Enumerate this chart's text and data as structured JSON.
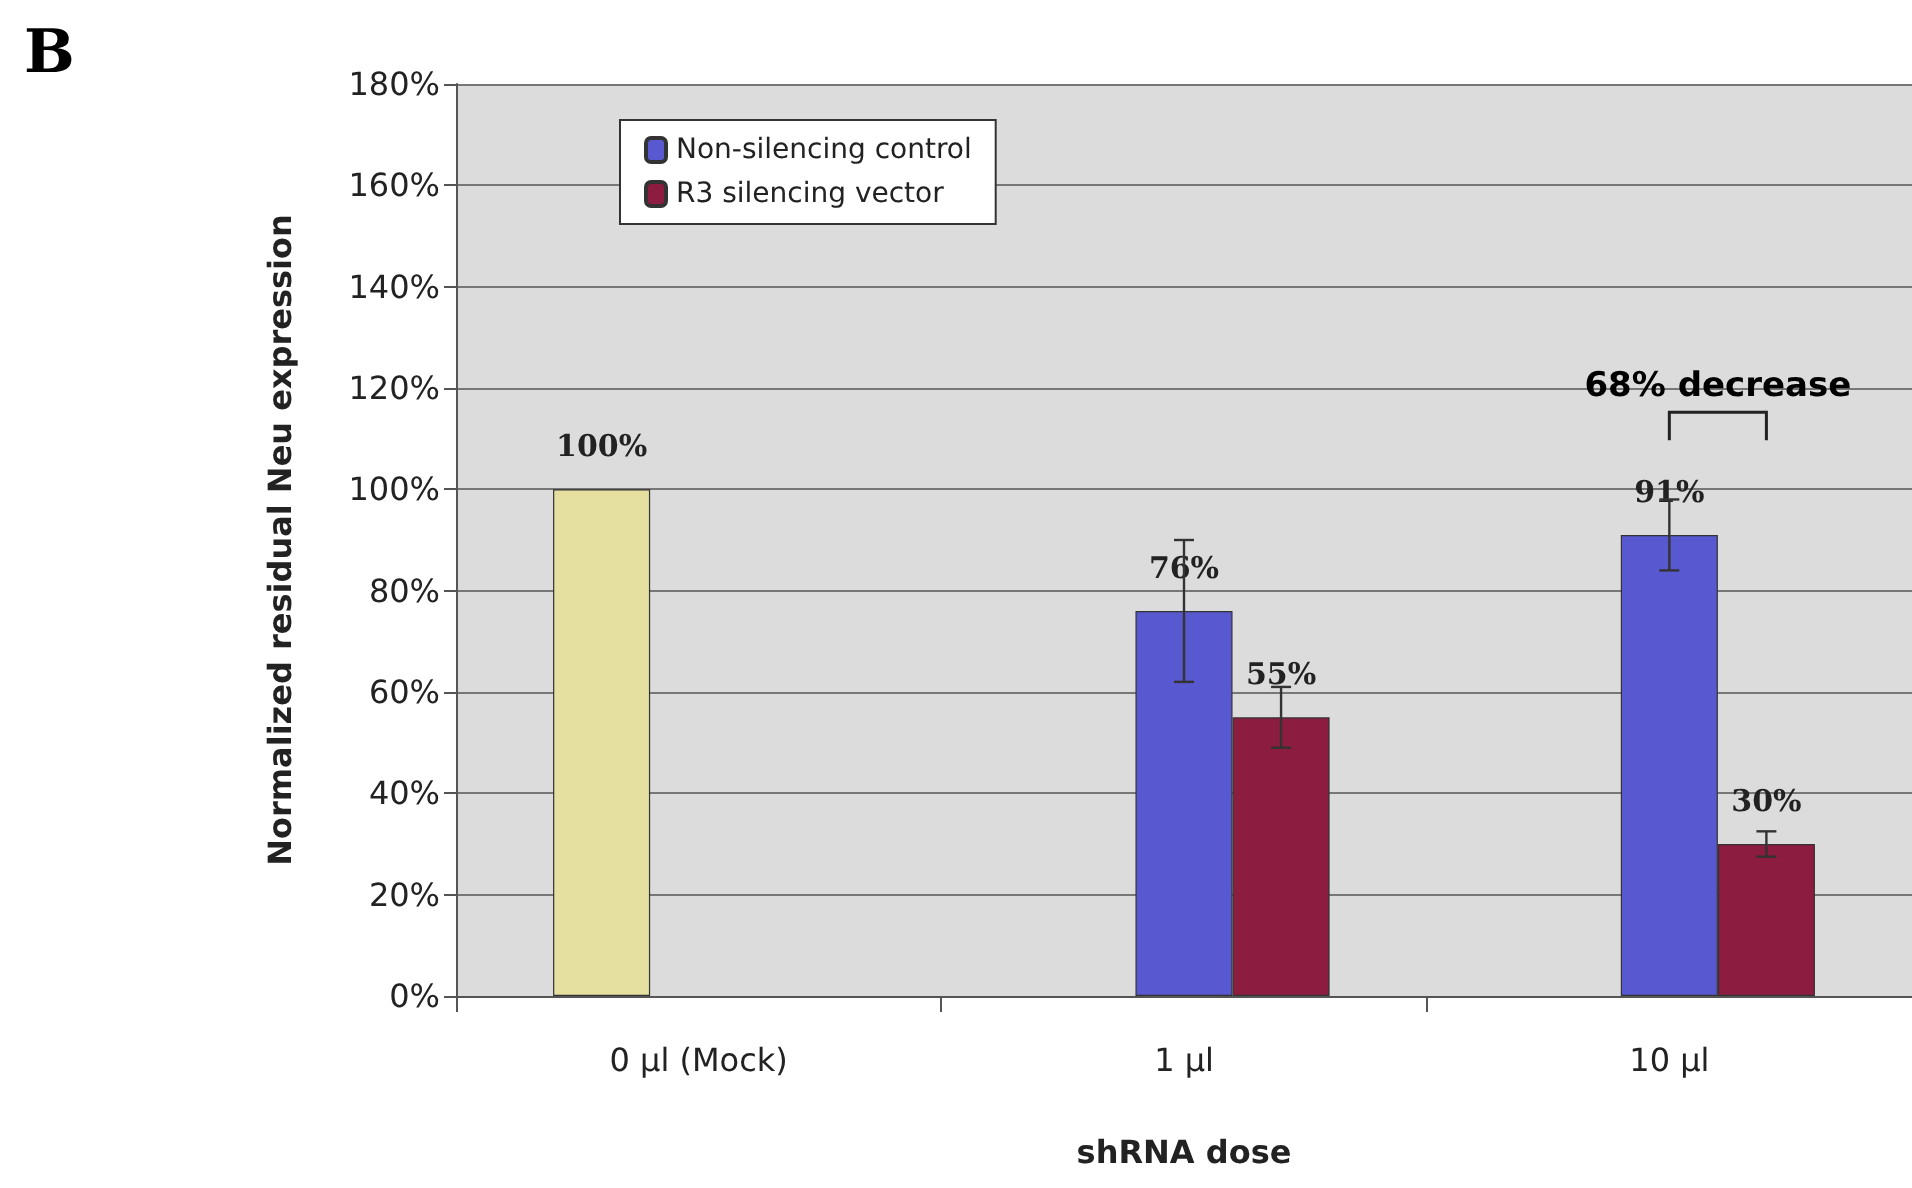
{
  "chart_data": {
    "type": "bar",
    "xlabel": "shRNA dose",
    "ylabel": "Normalized residual Neu expression",
    "categories": [
      "0 µl (Mock)",
      "1 µl",
      "10 µl"
    ],
    "series": [
      {
        "color": "#e6e0a0",
        "values": [
          100,
          null,
          null
        ],
        "errors": [
          null,
          null,
          null
        ]
      },
      {
        "name": "Non-silencing control",
        "color": "#5858d0",
        "values": [
          null,
          76,
          91
        ],
        "errors": [
          null,
          14,
          7
        ]
      },
      {
        "name": "R3 silencing vector",
        "color": "#8c1c40",
        "values": [
          null,
          55,
          30
        ],
        "errors": [
          null,
          6,
          2.5
        ]
      }
    ],
    "ylim": [
      0,
      180
    ],
    "yticks": [
      {
        "value": 0,
        "label": "0%"
      },
      {
        "value": 20,
        "label": "20%"
      },
      {
        "value": 40,
        "label": "40%"
      },
      {
        "value": 60,
        "label": "60%"
      },
      {
        "value": 80,
        "label": "80%"
      },
      {
        "value": 100,
        "label": "100%"
      },
      {
        "value": 120,
        "label": "120%"
      },
      {
        "value": 140,
        "label": "140%"
      },
      {
        "value": 160,
        "label": "160%"
      },
      {
        "value": 180,
        "label": "180%"
      }
    ],
    "value_labels": [
      [
        "100%",
        null,
        null
      ],
      [
        null,
        "76%",
        "91%"
      ],
      [
        null,
        "55%",
        "30%"
      ]
    ],
    "annotations": [
      "B",
      "68% decrease"
    ],
    "grid": "y",
    "legend": "top left"
  }
}
